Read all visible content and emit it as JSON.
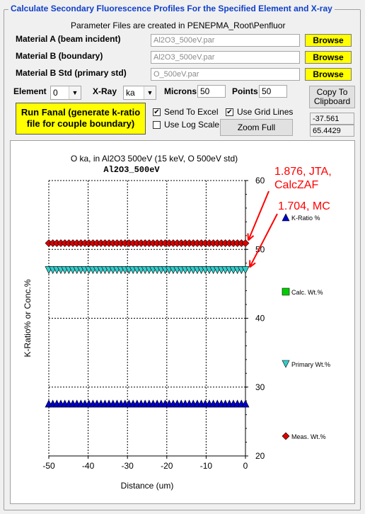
{
  "group_title": "Calculate Secondary Fluorescence Profiles For the Specified Element and X-ray",
  "param_note": "Parameter Files are created in PENEPMA_Root\\Penfluor",
  "materials": [
    {
      "label": "Material A (beam incident)",
      "value": "Al2O3_500eV.par",
      "button": "Browse"
    },
    {
      "label": "Material B (boundary)",
      "value": "Al2O3_500eV.par",
      "button": "Browse"
    },
    {
      "label": "Material B Std (primary std)",
      "value": "O_500eV.par",
      "button": "Browse"
    }
  ],
  "element": {
    "label": "Element",
    "value": "0",
    "arrow": "▼"
  },
  "xray": {
    "label": "X-Ray",
    "value": "ka",
    "arrow": "▼"
  },
  "microns": {
    "label": "Microns",
    "value": "50"
  },
  "points": {
    "label": "Points",
    "value": "50"
  },
  "copy_button": "Copy To Clipboard",
  "run_button": "Run Fanal (generate k-ratio file for couple boundary)",
  "checkboxes": {
    "send_excel": {
      "label": "Send To Excel",
      "checked": true
    },
    "use_grid": {
      "label": "Use Grid Lines",
      "checked": true
    },
    "log_scale": {
      "label": "Use Log Scale",
      "checked": false
    }
  },
  "zoom_button": "Zoom Full",
  "readouts": [
    "-37.561",
    "65.4429"
  ],
  "check_glyph": "✔",
  "chart_data": {
    "type": "line",
    "title": "O ka, in Al2O3 500eV (15 keV, O 500eV std)",
    "subtitle": "Al2O3_500eV",
    "xlabel": "Distance (um)",
    "ylabel": "K-Ratio% or Conc.%",
    "xlim": [
      -50,
      0
    ],
    "ylim": [
      20,
      60
    ],
    "x_ticks": [
      -50,
      -40,
      -30,
      -20,
      -10,
      0
    ],
    "y_ticks": [
      20,
      30,
      40,
      50,
      60
    ],
    "grid": true,
    "y_axis_side": "right",
    "legend_position": "right",
    "series": [
      {
        "name": "K-Ratio %",
        "marker": "triangle-up",
        "color": "#0000cc",
        "x_start": -50,
        "x_end": 0,
        "points": 50,
        "value": 27.6
      },
      {
        "name": "Calc. Wt.%",
        "marker": "square",
        "color": "#00cc00"
      },
      {
        "name": "Primary Wt.%",
        "marker": "triangle-down",
        "color": "#33cccc",
        "x_start": -50,
        "x_end": 0,
        "points": 50,
        "value": 47.0
      },
      {
        "name": "Meas. Wt.%",
        "marker": "diamond",
        "color": "#dd0000",
        "x_start": -50,
        "x_end": 0,
        "points": 50,
        "value": 50.9
      }
    ],
    "annotations": [
      {
        "text": "1.876, JTA, CalcZAF",
        "color": "#ff0000",
        "points_to": 50.9
      },
      {
        "text": "1.704, MC",
        "color": "#ff0000",
        "points_to": 47.0
      }
    ]
  }
}
